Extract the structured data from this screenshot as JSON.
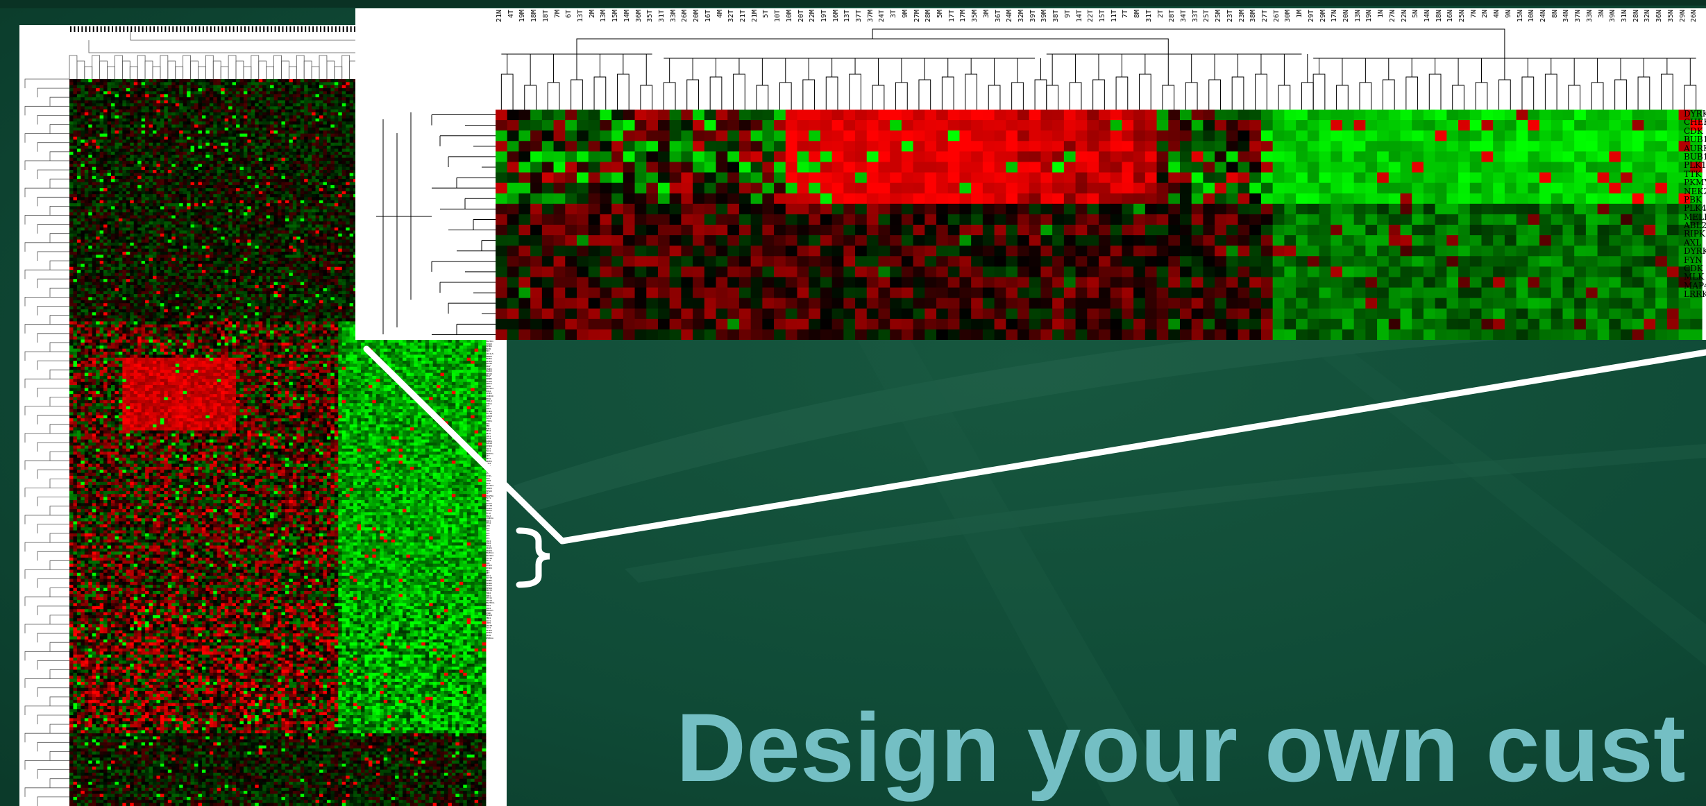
{
  "slide": {
    "title": "Design your own cust",
    "colors": {
      "background": "#0f4634",
      "title": "#74bfc4",
      "heat_up": "#ff0000",
      "heat_down": "#00ff00",
      "heat_zero": "#000000",
      "connector": "#ffffff"
    }
  },
  "zoom_heatmap": {
    "sample_labels": [
      "21N",
      "4T",
      "19M",
      "18M",
      "18T",
      "7M",
      "6T",
      "13T",
      "2M",
      "13M",
      "15M",
      "14M",
      "36M",
      "35T",
      "31T",
      "33M",
      "26M",
      "20M",
      "16T",
      "4M",
      "32T",
      "21T",
      "21M",
      "5T",
      "10T",
      "10M",
      "20T",
      "22M",
      "19T",
      "16M",
      "13T",
      "37T",
      "37M",
      "24T",
      "3T",
      "9M",
      "27M",
      "28M",
      "5M",
      "17T",
      "17M",
      "35M",
      "3M",
      "36T",
      "24M",
      "32M",
      "39T",
      "39M",
      "38T",
      "9T",
      "14T",
      "22T",
      "15T",
      "11T",
      "7T",
      "8M",
      "31T",
      "2T",
      "28T",
      "34T",
      "33T",
      "25T",
      "25M",
      "23T",
      "23M",
      "38M",
      "27T",
      "26T",
      "30M",
      "1M",
      "29T",
      "29M",
      "17N",
      "20N",
      "13N",
      "19N",
      "1N",
      "27N",
      "22N",
      "5N",
      "14N",
      "18N",
      "16N",
      "25N",
      "7N",
      "2N",
      "4N",
      "9N",
      "15N",
      "10N",
      "24N",
      "8N",
      "34N",
      "37N",
      "33N",
      "3N",
      "39N",
      "31N",
      "28N",
      "32N",
      "36N",
      "35N",
      "29N",
      "26N"
    ],
    "gene_labels": [
      "DYRK",
      "CHEK",
      "CDK",
      "BUB1",
      "AURK",
      "BUB1",
      "PLK1",
      "TTK",
      "PKMY",
      "NEK2",
      "PBK",
      "PLK4",
      "MELK",
      "ABL2",
      "RIPK",
      "AXL",
      "DYRK",
      "FYN",
      "CDK",
      "MLK",
      "MAP4",
      "LRRK"
    ]
  },
  "overview_heatmap": {
    "gene_labels": [
      "MAP3K1",
      "TYRO3",
      "EPHB4",
      "EGFR",
      "TIE",
      "CDC2L5",
      "PRKD2",
      "MAPK1",
      "RIPK2",
      "MAP2K",
      "ARAF",
      "CSNK1",
      "MAPK3",
      "RPS6K",
      "BRAF",
      "ERBB2",
      "FGFR2",
      "PRKCA",
      "INSR",
      "MAP3K4",
      "ROR2",
      "LIMK1",
      "CAMK2D",
      "PTK6",
      "CDKL5",
      "PHKG1",
      "ALK",
      "DDR1",
      "TTBK1",
      "MST1R",
      "AURKB",
      "PLK1",
      "CHEK1",
      "TTK",
      "PBK",
      "BUB1",
      "NEK2",
      "MELK",
      "CDK1",
      "PLK4",
      "AURKA",
      "BUB1B",
      "DYRK2",
      "CDC7",
      "TLK1",
      "PKMYT1",
      "CIT",
      "WEE1",
      "SRPK1",
      "CDK4",
      "PIM1",
      "RIPK3",
      "ABL2",
      "AXL",
      "DYRK1A",
      "FYN",
      "CDK8",
      "MLKL",
      "MAP4K4",
      "LRRK2",
      "EPHA2",
      "KIT",
      "PDGFRA",
      "FLT1",
      "TEK",
      "ROCK1",
      "STK38",
      "DAPK1",
      "PRKG1",
      "MYLK",
      "PAK3",
      "CAMK2A",
      "SGK1",
      "PTK2",
      "LYN",
      "HCK",
      "LCK",
      "SYK",
      "BTK",
      "ITK",
      "JAK1",
      "JAK2",
      "TYK2",
      "IRAK1",
      "IRAK4",
      "MAPK14",
      "MAP2K3",
      "CSF1R",
      "FLT3",
      "KDR",
      "NTRK1",
      "NTRK2",
      "MET",
      "RET",
      "ROS1",
      "IGF1R",
      "EPHB1",
      "EPHB2",
      "EPHA1",
      "EPHA4",
      "MERTK",
      "TNK2",
      "TNK1",
      "STK11",
      "STK10",
      "MAP3K11",
      "PAK1",
      "PAK2",
      "PRKAA1",
      "CHUK",
      "IKBKB",
      "TBK1",
      "ULK1",
      "CDK5",
      "GSK3B",
      "CLK1",
      "HIPK2",
      "DYRK3",
      "PIM2",
      "BMPR1A"
    ]
  }
}
